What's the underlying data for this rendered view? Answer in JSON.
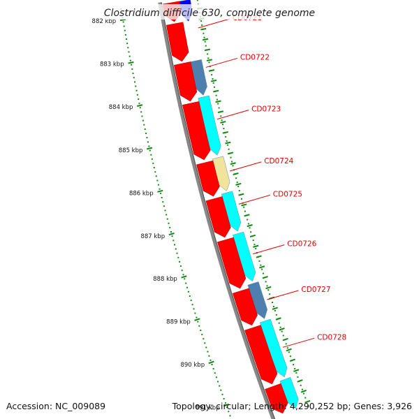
{
  "title": "Clostridium difficile 630, complete genome",
  "footer": {
    "accession": "Accession: NC_009089",
    "summary": "Topology: circular; Length: 4,290,252 bp; Genes: 3,926"
  },
  "colors": {
    "backbone": "#888888",
    "backbone_shadow": "#555555",
    "forward_cds": "#ff0000",
    "reverse_cds": "#00ffff",
    "reverse_cds_alt": "#4f7fae",
    "reverse_cds_pale": "#f2e39a",
    "top_blue": "#0000ff",
    "ticks": "#118811",
    "labels": "#e00000"
  },
  "scale": {
    "unit": "kbp",
    "ticks": [
      {
        "kbp": 882,
        "label": "882 kbp"
      },
      {
        "kbp": 883,
        "label": "883 kbp"
      },
      {
        "kbp": 884,
        "label": "884 kbp"
      },
      {
        "kbp": 885,
        "label": "885 kbp"
      },
      {
        "kbp": 886,
        "label": "886 kbp"
      },
      {
        "kbp": 887,
        "label": "887 kbp"
      },
      {
        "kbp": 888,
        "label": "888 kbp"
      },
      {
        "kbp": 889,
        "label": "889 kbp"
      },
      {
        "kbp": 890,
        "label": "890 kbp"
      },
      {
        "kbp": 891,
        "label": "891 kbp"
      }
    ]
  },
  "features": {
    "forward": [
      {
        "start": 881.8,
        "end": 882.25
      },
      {
        "start": 882.3,
        "end": 883.2
      },
      {
        "start": 883.25,
        "end": 884.15
      },
      {
        "start": 884.2,
        "end": 885.55
      },
      {
        "start": 885.62,
        "end": 886.42
      },
      {
        "start": 886.48,
        "end": 887.4
      },
      {
        "start": 887.46,
        "end": 888.62
      },
      {
        "start": 888.68,
        "end": 889.5
      },
      {
        "start": 889.56,
        "end": 890.9
      },
      {
        "start": 890.96,
        "end": 891.6
      }
    ],
    "reverse": [
      {
        "start": 881.8,
        "end": 882.3,
        "color": "top_blue"
      },
      {
        "start": 883.25,
        "end": 884.08,
        "color": "reverse_cds_alt"
      },
      {
        "start": 884.12,
        "end": 885.52,
        "color": "reverse_cds"
      },
      {
        "start": 885.58,
        "end": 886.38,
        "color": "reverse_cds_pale"
      },
      {
        "start": 886.42,
        "end": 887.35,
        "color": "reverse_cds"
      },
      {
        "start": 887.4,
        "end": 888.55,
        "color": "reverse_cds"
      },
      {
        "start": 888.6,
        "end": 889.45,
        "color": "reverse_cds_alt"
      },
      {
        "start": 889.5,
        "end": 890.85,
        "color": "reverse_cds"
      },
      {
        "start": 890.9,
        "end": 891.6,
        "color": "reverse_cds"
      }
    ]
  },
  "gene_labels": [
    {
      "name": "CD0721",
      "kbp": 882.5
    },
    {
      "name": "CD0722",
      "kbp": 883.45
    },
    {
      "name": "CD0723",
      "kbp": 884.7
    },
    {
      "name": "CD0724",
      "kbp": 885.95
    },
    {
      "name": "CD0725",
      "kbp": 886.75
    },
    {
      "name": "CD0726",
      "kbp": 887.95
    },
    {
      "name": "CD0727",
      "kbp": 889.05
    },
    {
      "name": "CD0728",
      "kbp": 890.2
    }
  ]
}
